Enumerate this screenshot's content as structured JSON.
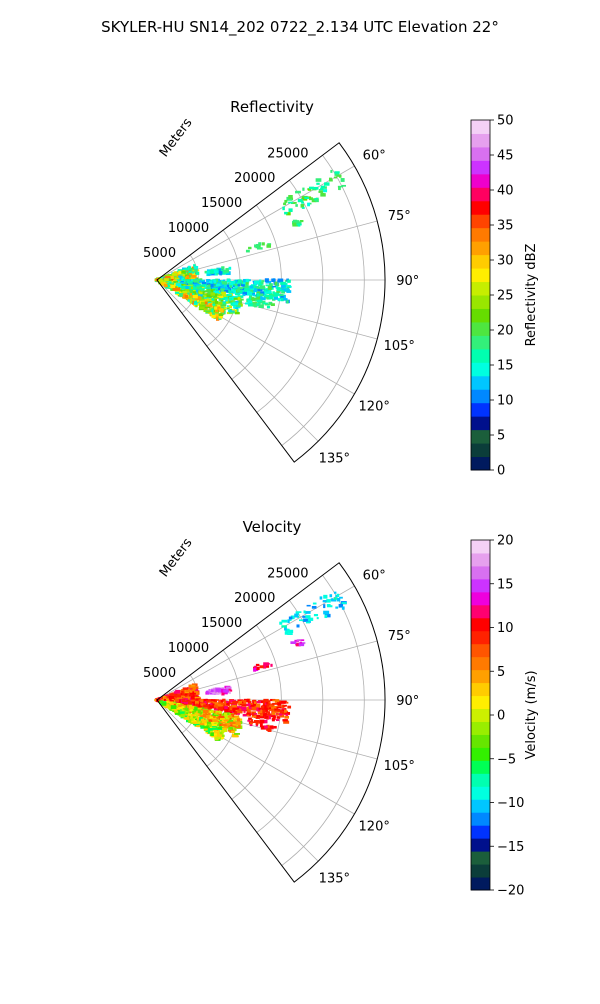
{
  "figure": {
    "suptitle": "SKYLER-HU  SN14_202  0722_2.134 UTC Elevation 22°"
  },
  "chart_data": [
    {
      "type": "polar-sector",
      "title": "Reflectivity",
      "radial_label": "Meters",
      "r_ticks": [
        "5000",
        "10000",
        "15000",
        "20000",
        "25000"
      ],
      "r_max": 27500,
      "theta_range_deg": [
        53,
        143
      ],
      "theta_ticks": [
        "60°",
        "75°",
        "90°",
        "105°",
        "120°",
        "135°"
      ],
      "theta_values": [
        60,
        75,
        90,
        105,
        120,
        135
      ],
      "grid": true,
      "colorbar": {
        "label": "Reflectivity dBZ",
        "min": 0,
        "max": 50,
        "ticks": [
          "0",
          "5",
          "10",
          "15",
          "20",
          "25",
          "30",
          "35",
          "40",
          "45",
          "50"
        ],
        "colors": [
          "#001a5e",
          "#0b3d3a",
          "#1b5e3b",
          "#00108c",
          "#0033ff",
          "#0088ff",
          "#00c6ff",
          "#00ffe0",
          "#00ffb0",
          "#33f07a",
          "#4ee640",
          "#66dd00",
          "#99e600",
          "#c6ee00",
          "#ffee00",
          "#ffcc00",
          "#ffa000",
          "#ff7a00",
          "#ff4400",
          "#ff0000",
          "#ff0060",
          "#ee00cc",
          "#cc33ff",
          "#d870f0",
          "#e6a0ee",
          "#f4d0f6"
        ]
      },
      "echo_clusters": [
        {
          "az": 61,
          "r": [
            17500,
            25500
          ],
          "width": 6,
          "n": 60,
          "cmin": 15,
          "cmax": 22
        },
        {
          "az": 68,
          "r": [
            17800,
            19000
          ],
          "width": 2,
          "n": 10,
          "cmin": 16,
          "cmax": 20
        },
        {
          "az": 72,
          "r": [
            11500,
            14500
          ],
          "width": 3,
          "n": 12,
          "cmin": 17,
          "cmax": 21
        },
        {
          "az": 82,
          "r": [
            6000,
            9000
          ],
          "width": 5,
          "n": 40,
          "cmin": 10,
          "cmax": 20
        },
        {
          "az": 88,
          "r": [
            0,
            5000
          ],
          "width": 40,
          "n": 420,
          "cmin": 12,
          "cmax": 35
        },
        {
          "az": 95,
          "r": [
            3000,
            16000
          ],
          "width": 10,
          "n": 380,
          "cmin": 10,
          "cmax": 20
        },
        {
          "az": 108,
          "r": [
            1000,
            10500
          ],
          "width": 14,
          "n": 360,
          "cmin": 12,
          "cmax": 28
        },
        {
          "az": 118,
          "r": [
            500,
            9000
          ],
          "width": 10,
          "n": 260,
          "cmin": 15,
          "cmax": 34
        },
        {
          "az": 103,
          "r": [
            11000,
            14500
          ],
          "width": 4,
          "n": 30,
          "cmin": 15,
          "cmax": 20
        }
      ]
    },
    {
      "type": "polar-sector",
      "title": "Velocity",
      "radial_label": "Meters",
      "r_ticks": [
        "5000",
        "10000",
        "15000",
        "20000",
        "25000"
      ],
      "r_max": 27500,
      "theta_range_deg": [
        53,
        143
      ],
      "theta_ticks": [
        "60°",
        "75°",
        "90°",
        "105°",
        "120°",
        "135°"
      ],
      "theta_values": [
        60,
        75,
        90,
        105,
        120,
        135
      ],
      "grid": true,
      "colorbar": {
        "label": "Velocity (m/s)",
        "min": -20,
        "max": 20,
        "ticks": [
          "−20",
          "−15",
          "−10",
          "−5",
          "0",
          "5",
          "10",
          "15",
          "20"
        ],
        "colors": [
          "#001a5e",
          "#0b3d3a",
          "#1b5e3b",
          "#00108c",
          "#0033ff",
          "#0088ff",
          "#00c6ff",
          "#00ffe0",
          "#00ffb0",
          "#00ff55",
          "#33f000",
          "#66e600",
          "#99ee00",
          "#ccf000",
          "#ffee00",
          "#ffcc00",
          "#ffa000",
          "#ff7a00",
          "#ff5500",
          "#ff2200",
          "#ff0000",
          "#ff0070",
          "#ee00dd",
          "#cc33ff",
          "#d870f0",
          "#e6a0ee",
          "#f4d0f6"
        ]
      },
      "echo_clusters": [
        {
          "az": 61,
          "r": [
            17500,
            25500
          ],
          "width": 6,
          "n": 60,
          "cmin": -12,
          "cmax": -8
        },
        {
          "az": 68,
          "r": [
            17800,
            19000
          ],
          "width": 2,
          "n": 10,
          "cmin": 12,
          "cmax": 17
        },
        {
          "az": 72,
          "r": [
            11500,
            14500
          ],
          "width": 3,
          "n": 12,
          "cmin": 9,
          "cmax": 14
        },
        {
          "az": 82,
          "r": [
            6000,
            9000
          ],
          "width": 5,
          "n": 40,
          "cmin": 12,
          "cmax": 18
        },
        {
          "az": 88,
          "r": [
            0,
            5000
          ],
          "width": 40,
          "n": 420,
          "cmin": 4,
          "cmax": 12
        },
        {
          "az": 95,
          "r": [
            3000,
            16000
          ],
          "width": 10,
          "n": 380,
          "cmin": 6,
          "cmax": 12
        },
        {
          "az": 108,
          "r": [
            1000,
            10500
          ],
          "width": 14,
          "n": 360,
          "cmin": -4,
          "cmax": 8
        },
        {
          "az": 118,
          "r": [
            500,
            9000
          ],
          "width": 10,
          "n": 260,
          "cmin": -6,
          "cmax": 4
        },
        {
          "az": 103,
          "r": [
            11000,
            14500
          ],
          "width": 4,
          "n": 30,
          "cmin": 8,
          "cmax": 12
        }
      ]
    }
  ]
}
